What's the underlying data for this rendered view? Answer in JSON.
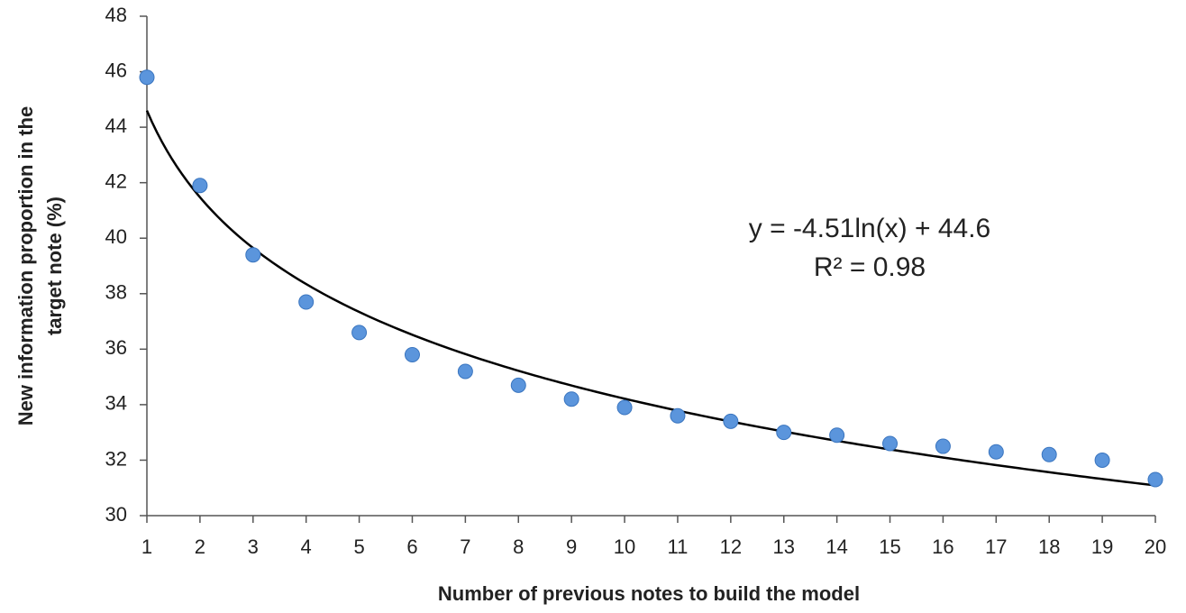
{
  "chart_data": {
    "type": "scatter",
    "xlabel": "Number of previous notes to build the model",
    "ylabel": [
      "New information proportion in the",
      "target note (%)"
    ],
    "x": [
      1,
      2,
      3,
      4,
      5,
      6,
      7,
      8,
      9,
      10,
      11,
      12,
      13,
      14,
      15,
      16,
      17,
      18,
      19,
      20
    ],
    "series": [
      {
        "color": "#5b95dc",
        "values": [
          45.8,
          41.9,
          39.4,
          37.7,
          36.6,
          35.8,
          35.2,
          34.7,
          34.2,
          33.9,
          33.6,
          33.4,
          33.0,
          32.9,
          32.6,
          32.5,
          32.3,
          32.2,
          32.0,
          31.3
        ]
      }
    ],
    "trendline": {
      "kind": "log",
      "slope": -4.51,
      "intercept": 44.6,
      "color": "#000000",
      "equation": "y = -4.51ln(x) + 44.6",
      "r2_label": "R² = 0.98"
    },
    "xlim": [
      1,
      20
    ],
    "xticks": [
      1,
      2,
      3,
      4,
      5,
      6,
      7,
      8,
      9,
      10,
      11,
      12,
      13,
      14,
      15,
      16,
      17,
      18,
      19,
      20
    ],
    "ylim": [
      30,
      48
    ],
    "yticks": [
      30,
      32,
      34,
      36,
      38,
      40,
      42,
      44,
      46,
      48
    ],
    "grid": false
  }
}
